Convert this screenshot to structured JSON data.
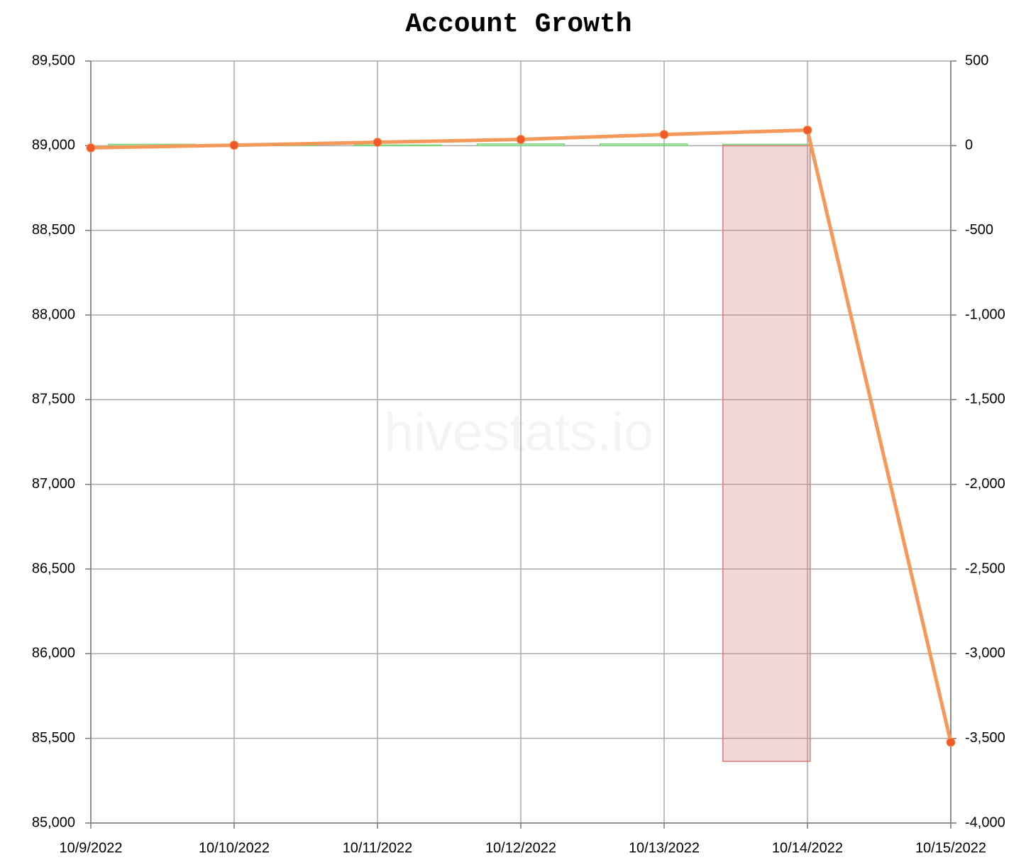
{
  "chart_data": {
    "type": "combo",
    "title": "Account Growth",
    "watermark": "hivestats.io",
    "categories": [
      "10/9/2022",
      "10/10/2022",
      "10/11/2022",
      "10/12/2022",
      "10/13/2022",
      "10/14/2022",
      "10/15/2022"
    ],
    "series": [
      {
        "type": "line",
        "axis": "y",
        "color": "#f4995a",
        "marker_color": "#f05a28",
        "values": [
          88987,
          89003,
          89020,
          89037,
          89066,
          89092,
          85477
        ]
      },
      {
        "type": "bar",
        "axis": "y2",
        "color": "#7ed37e",
        "values": [
          8,
          4,
          4,
          10,
          10,
          8,
          0
        ]
      },
      {
        "type": "bar",
        "axis": "y2",
        "color": "#d87a7a",
        "values": [
          0,
          0,
          0,
          0,
          0,
          -3636,
          0
        ]
      }
    ],
    "ylim": [
      85000,
      89500
    ],
    "yticks": [
      {
        "value": 85000,
        "label": "85,000"
      },
      {
        "value": 85500,
        "label": "85,500"
      },
      {
        "value": 86000,
        "label": "86,000"
      },
      {
        "value": 86500,
        "label": "86,500"
      },
      {
        "value": 87000,
        "label": "87,000"
      },
      {
        "value": 87500,
        "label": "87,500"
      },
      {
        "value": 88000,
        "label": "88,000"
      },
      {
        "value": 88500,
        "label": "88,500"
      },
      {
        "value": 89000,
        "label": "89,000"
      },
      {
        "value": 89500,
        "label": "89,500"
      }
    ],
    "y2lim": [
      -4000,
      500
    ],
    "y2ticks": [
      {
        "value": -4000,
        "label": "-4,000"
      },
      {
        "value": -3500,
        "label": "-3,500"
      },
      {
        "value": -3000,
        "label": "-3,000"
      },
      {
        "value": -2500,
        "label": "-2,500"
      },
      {
        "value": -2000,
        "label": "-2,000"
      },
      {
        "value": -1500,
        "label": "-1,500"
      },
      {
        "value": -1000,
        "label": "-1,000"
      },
      -500,
      0,
      500
    ],
    "grid": true
  }
}
